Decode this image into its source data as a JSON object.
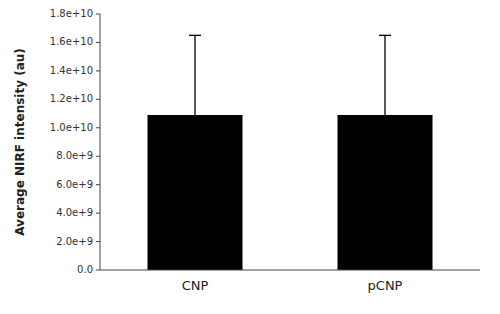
{
  "chart_data": {
    "type": "bar",
    "categories": [
      "CNP",
      "pCNP"
    ],
    "values": [
      10900000000.0,
      10900000000.0
    ],
    "errors": [
      5600000000.0,
      5600000000.0
    ],
    "color": "#000000",
    "ylabel": "Average NIRF intensity (au)",
    "ylim": [
      0,
      18000000000.0
    ],
    "yticks": [
      {
        "value": 0.0,
        "label": "0.0"
      },
      {
        "value": 2000000000.0,
        "label": "2.0e+9"
      },
      {
        "value": 4000000000.0,
        "label": "4.0e+9"
      },
      {
        "value": 6000000000.0,
        "label": "6.0e+9"
      },
      {
        "value": 8000000000.0,
        "label": "8.0e+9"
      },
      {
        "value": 10000000000.0,
        "label": "1.0e+10"
      },
      {
        "value": 12000000000.0,
        "label": "1.2e+10"
      },
      {
        "value": 14000000000.0,
        "label": "1.4e+10"
      },
      {
        "value": 16000000000.0,
        "label": "1.6e+10"
      },
      {
        "value": 18000000000.0,
        "label": "1.8e+10"
      }
    ],
    "grid": false
  }
}
